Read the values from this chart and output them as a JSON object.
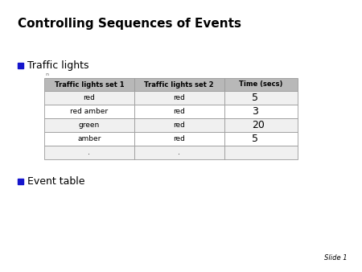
{
  "title": "Controlling Sequences of Events",
  "bullet1": "Traffic lights",
  "bullet2": "Event table",
  "slide_label": "Slide 1",
  "table_headers": [
    "Traffic lights set 1",
    "Traffic lights set 2",
    "Time (secs)"
  ],
  "table_rows": [
    [
      "red",
      "red",
      "5"
    ],
    [
      "red amber",
      "red",
      "3"
    ],
    [
      "green",
      "red",
      "20"
    ],
    [
      "amber",
      "red",
      "5"
    ],
    [
      ".",
      ".",
      ""
    ]
  ],
  "header_bg": "#b8b8b8",
  "header_text_color": "#000000",
  "row_bg_even": "#f0f0f0",
  "row_bg_odd": "#ffffff",
  "cell_text_color": "#000000",
  "bullet_color": "#1515cc",
  "title_color": "#000000",
  "bg_color": "#ffffff",
  "border_color": "#999999",
  "title_fontsize": 11,
  "bullet_fontsize": 9,
  "header_fontsize": 6,
  "cell_fontsize": 6.5,
  "time_fontsize": 9,
  "slide_label_fontsize": 6
}
